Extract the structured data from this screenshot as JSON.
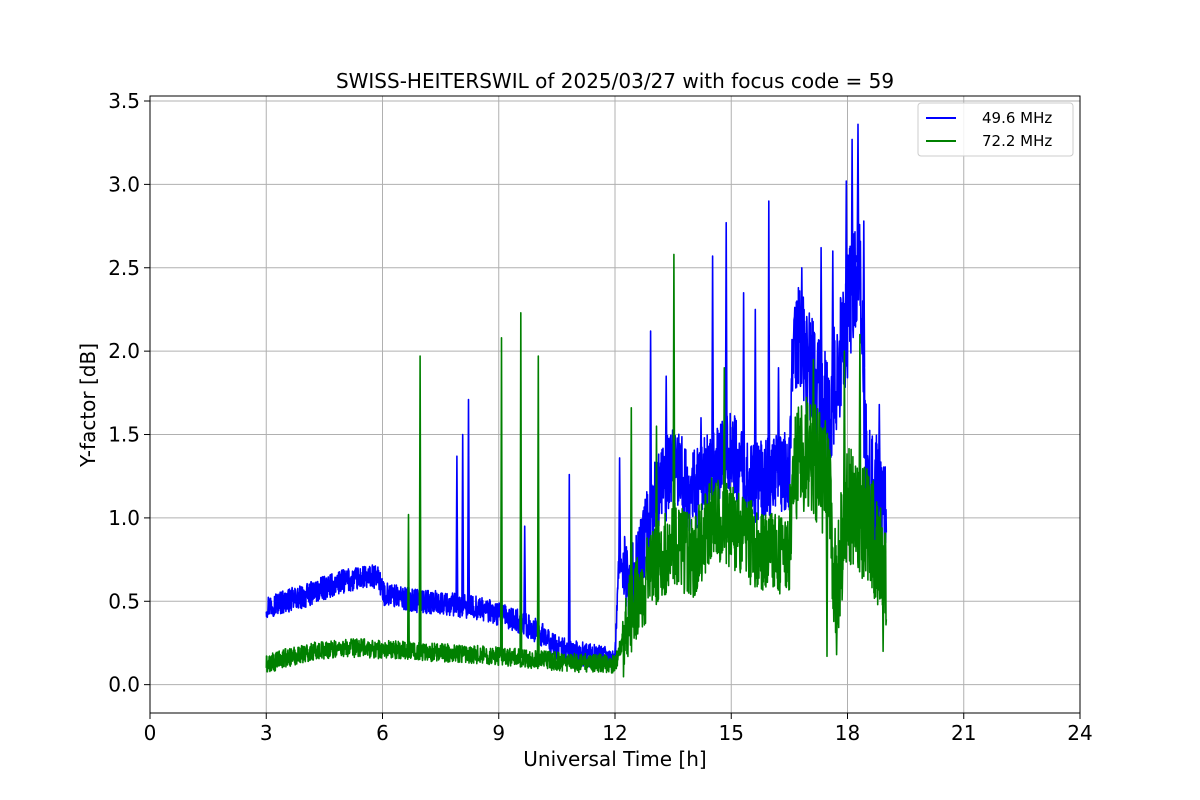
{
  "chart_data": {
    "type": "line",
    "title": "SWISS-HEITERSWIL of 2025/03/27 with focus code = 59",
    "xlabel": "Universal Time [h]",
    "ylabel": "Y-factor [dB]",
    "xlim": [
      0,
      24
    ],
    "ylim": [
      -0.17,
      3.53
    ],
    "xticks": [
      0,
      3,
      6,
      9,
      12,
      15,
      18,
      21,
      24
    ],
    "yticks": [
      0.0,
      0.5,
      1.0,
      1.5,
      2.0,
      2.5,
      3.0,
      3.5
    ],
    "xtick_labels": [
      "0",
      "3",
      "6",
      "9",
      "12",
      "15",
      "18",
      "21",
      "24"
    ],
    "ytick_labels": [
      "0.0",
      "0.5",
      "1.0",
      "1.5",
      "2.0",
      "2.5",
      "3.0",
      "3.5"
    ],
    "grid": true,
    "legend_position": "top-right",
    "series": [
      {
        "name": "49.6 MHz",
        "color": "#0000ff",
        "x": [
          3.0,
          3.5,
          4.0,
          4.5,
          5.0,
          5.5,
          5.9,
          6.0,
          6.5,
          7.0,
          7.5,
          8.0,
          8.5,
          9.0,
          9.5,
          10.0,
          10.5,
          11.0,
          11.5,
          12.0,
          12.1,
          12.5,
          13.0,
          13.5,
          14.0,
          14.5,
          15.0,
          15.5,
          16.0,
          16.5,
          16.6,
          17.0,
          17.5,
          18.0,
          18.3,
          18.5,
          19.0
        ],
        "y": [
          0.47,
          0.5,
          0.53,
          0.58,
          0.62,
          0.64,
          0.65,
          0.55,
          0.52,
          0.5,
          0.49,
          0.47,
          0.46,
          0.42,
          0.38,
          0.32,
          0.22,
          0.19,
          0.17,
          0.15,
          0.75,
          0.6,
          1.1,
          1.3,
          1.15,
          1.3,
          1.4,
          1.2,
          1.25,
          1.3,
          2.1,
          1.9,
          1.6,
          2.2,
          2.6,
          1.2,
          1.1
        ],
        "spikes": [
          {
            "x": 7.9,
            "y": 1.37
          },
          {
            "x": 8.05,
            "y": 1.5
          },
          {
            "x": 8.2,
            "y": 1.71
          },
          {
            "x": 9.65,
            "y": 0.95
          },
          {
            "x": 10.8,
            "y": 1.26
          },
          {
            "x": 12.1,
            "y": 1.36
          },
          {
            "x": 12.9,
            "y": 2.12
          },
          {
            "x": 13.3,
            "y": 1.85
          },
          {
            "x": 14.2,
            "y": 1.6
          },
          {
            "x": 14.5,
            "y": 2.57
          },
          {
            "x": 14.85,
            "y": 2.77
          },
          {
            "x": 15.3,
            "y": 2.35
          },
          {
            "x": 15.6,
            "y": 2.25
          },
          {
            "x": 15.95,
            "y": 2.9
          },
          {
            "x": 16.2,
            "y": 1.9
          },
          {
            "x": 16.8,
            "y": 2.5
          },
          {
            "x": 17.3,
            "y": 2.62
          },
          {
            "x": 17.6,
            "y": 2.6
          },
          {
            "x": 17.95,
            "y": 3.02
          },
          {
            "x": 18.1,
            "y": 3.27
          },
          {
            "x": 18.25,
            "y": 3.36
          },
          {
            "x": 18.4,
            "y": 2.78
          },
          {
            "x": 18.8,
            "y": 1.68
          }
        ]
      },
      {
        "name": "72.2 MHz",
        "color": "#008000",
        "x": [
          3.0,
          3.5,
          4.0,
          4.5,
          5.0,
          5.5,
          6.0,
          6.5,
          7.0,
          7.5,
          8.0,
          8.5,
          9.0,
          9.5,
          10.0,
          10.5,
          11.0,
          11.5,
          12.0,
          12.5,
          13.0,
          13.5,
          14.0,
          14.5,
          15.0,
          15.5,
          16.0,
          16.5,
          16.6,
          17.0,
          17.5,
          17.7,
          18.0,
          18.5,
          19.0
        ],
        "y": [
          0.12,
          0.16,
          0.19,
          0.21,
          0.22,
          0.22,
          0.21,
          0.21,
          0.2,
          0.19,
          0.19,
          0.18,
          0.17,
          0.16,
          0.15,
          0.14,
          0.13,
          0.13,
          0.12,
          0.5,
          0.7,
          0.85,
          0.75,
          1.0,
          0.95,
          0.85,
          0.8,
          0.75,
          1.3,
          1.4,
          1.2,
          0.55,
          1.1,
          0.95,
          0.7
        ],
        "spikes": [
          {
            "x": 6.65,
            "y": 1.02
          },
          {
            "x": 6.95,
            "y": 1.97
          },
          {
            "x": 9.05,
            "y": 2.08
          },
          {
            "x": 9.55,
            "y": 2.23
          },
          {
            "x": 10.0,
            "y": 1.97
          },
          {
            "x": 12.4,
            "y": 1.66
          },
          {
            "x": 13.05,
            "y": 1.55
          },
          {
            "x": 13.5,
            "y": 2.58
          },
          {
            "x": 14.8,
            "y": 1.9
          },
          {
            "x": 16.5,
            "y": 1.2
          },
          {
            "x": 17.1,
            "y": 1.95
          },
          {
            "x": 17.9,
            "y": 2.0
          },
          {
            "x": 18.3,
            "y": 2.1
          },
          {
            "x": 17.45,
            "y": 0.17
          },
          {
            "x": 17.7,
            "y": 0.18
          },
          {
            "x": 18.9,
            "y": 0.2
          }
        ]
      }
    ]
  }
}
